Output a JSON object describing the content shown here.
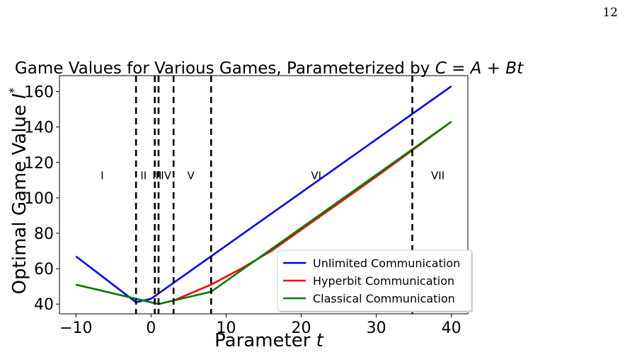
{
  "page": {
    "number": "12"
  },
  "chart_data": {
    "type": "line",
    "title": "Game Values for Various Games, Parameterized by C = A + Bt",
    "title_parts": {
      "prefix": "Game Values for Various Games, Parameterized by ",
      "math": "C = A + Bt"
    },
    "xlabel": "Parameter t",
    "xlabel_parts": {
      "prefix": "Parameter ",
      "math": "t"
    },
    "ylabel": "Optimal Game Value I*",
    "ylabel_parts": {
      "prefix": "Optimal Game Value ",
      "math": "I",
      "sup": "*"
    },
    "xlim": [
      -12.2,
      42.2
    ],
    "ylim": [
      34.5,
      169
    ],
    "xticks": [
      -10,
      0,
      10,
      20,
      30,
      40
    ],
    "xtick_labels": [
      "−10",
      "0",
      "10",
      "20",
      "30",
      "40"
    ],
    "yticks": [
      40,
      60,
      80,
      100,
      120,
      140,
      160
    ],
    "ytick_labels": [
      "40",
      "60",
      "80",
      "100",
      "120",
      "140",
      "160"
    ],
    "grid": false,
    "legend_position": "lower-right",
    "series": [
      {
        "name": "Unlimited Communication",
        "color": "#0000ff",
        "x": [
          -10,
          -2,
          0,
          40
        ],
        "y": [
          67,
          41,
          43,
          163
        ]
      },
      {
        "name": "Hyperbit Communication",
        "color": "#ff0000",
        "x": [
          -10,
          -2,
          0,
          1,
          3,
          8,
          12,
          16,
          20,
          25,
          30,
          40
        ],
        "y": [
          51,
          43,
          41,
          40,
          42,
          51,
          60,
          70,
          82,
          97,
          112,
          143
        ]
      },
      {
        "name": "Classical Communication",
        "color": "#008000",
        "x": [
          -10,
          -2,
          0,
          1,
          3,
          8,
          40
        ],
        "y": [
          51,
          43,
          41,
          40,
          42,
          47,
          143
        ]
      }
    ],
    "vlines": {
      "x": [
        -2,
        0.5,
        1,
        3,
        8,
        34.8
      ],
      "style": "dashed",
      "color": "#000000"
    },
    "regions": [
      {
        "label": "I",
        "x": -6.5
      },
      {
        "label": "II",
        "x": -1.0
      },
      {
        "label": "III",
        "x": 0.8
      },
      {
        "label": "IV",
        "x": 2.0
      },
      {
        "label": "V",
        "x": 5.3
      },
      {
        "label": "VI",
        "x": 22.0
      },
      {
        "label": "VII",
        "x": 38.2
      }
    ],
    "region_label_y": 113
  }
}
